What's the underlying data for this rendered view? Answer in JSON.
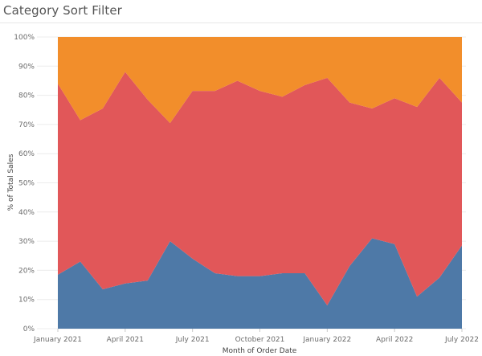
{
  "header": {
    "title": "Category Sort Filter"
  },
  "chart_data": {
    "type": "area",
    "stacking": "percent",
    "title": "Category Sort Filter",
    "xlabel": "Month of Order Date",
    "ylabel": "% of Total Sales",
    "ylim": [
      0,
      100
    ],
    "yticks": [
      "0%",
      "10%",
      "20%",
      "30%",
      "40%",
      "50%",
      "60%",
      "70%",
      "80%",
      "90%",
      "100%"
    ],
    "xticks": [
      {
        "label": "January 2021",
        "index": 0
      },
      {
        "label": "April 2021",
        "index": 3
      },
      {
        "label": "July 2021",
        "index": 6
      },
      {
        "label": "October 2021",
        "index": 9
      },
      {
        "label": "January 2022",
        "index": 12
      },
      {
        "label": "April 2022",
        "index": 15
      },
      {
        "label": "July 2022",
        "index": 18
      }
    ],
    "x": [
      "2021-01",
      "2021-02",
      "2021-03",
      "2021-04",
      "2021-05",
      "2021-06",
      "2021-07",
      "2021-08",
      "2021-09",
      "2021-10",
      "2021-11",
      "2021-12",
      "2022-01",
      "2022-02",
      "2022-03",
      "2022-04",
      "2022-05",
      "2022-06",
      "2022-07"
    ],
    "grid": true,
    "series": [
      {
        "color": "#4e79a7",
        "values": [
          18.5,
          23,
          13.5,
          15.5,
          16.5,
          30,
          24,
          19,
          18,
          18,
          19,
          19,
          8,
          21.5,
          31,
          29,
          11,
          17.5,
          28.5
        ]
      },
      {
        "color": "#e15759",
        "values": [
          65.5,
          48.5,
          62,
          72.5,
          62,
          40.5,
          57.5,
          62.5,
          67,
          63.5,
          60.5,
          64.5,
          78,
          56,
          44.5,
          50,
          65,
          68.5,
          49
        ]
      },
      {
        "color": "#f28e2b",
        "values": [
          16,
          28.5,
          24.5,
          12,
          21.5,
          29.5,
          18.5,
          18.5,
          15,
          18.5,
          20.5,
          16.5,
          14,
          22.5,
          24.5,
          21,
          24,
          14,
          22.5
        ]
      }
    ]
  }
}
